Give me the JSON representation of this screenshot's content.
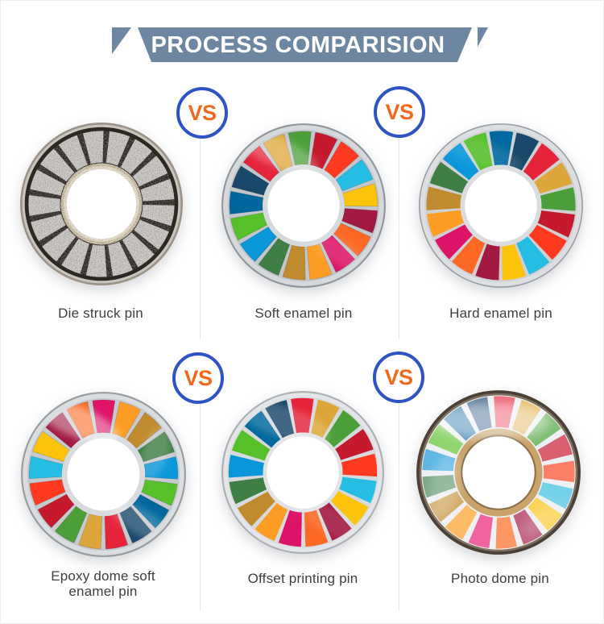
{
  "header": {
    "title": "PROCESS COMPARISION",
    "banner_color": "#6d87a2",
    "text_color": "#ffffff"
  },
  "vs_badge": {
    "label": "VS",
    "text_color": "#f2691d",
    "ring_color": "#2d53c4",
    "fill": "#ffffff"
  },
  "divider_color": "#e9eaec",
  "label_color": "#3e3e40",
  "sdg_palette": [
    "#E5243B",
    "#DDA63A",
    "#4C9F38",
    "#C5192D",
    "#FF3A21",
    "#26BDE2",
    "#FCC30B",
    "#A21942",
    "#FD6925",
    "#DD1367",
    "#FD9D24",
    "#BF8B2E",
    "#3F7E44",
    "#0A97D9",
    "#56C02B",
    "#00689D",
    "#19486A"
  ],
  "pastel_palette": [
    "#ee6876",
    "#e8c06e",
    "#7fbe72",
    "#d96070",
    "#fb7f66",
    "#74d2e8",
    "#fbd355",
    "#c06080",
    "#fd9766",
    "#ef63a0",
    "#fdbb66",
    "#d2ab67",
    "#7ba884",
    "#5fb6e3",
    "#8ed46c",
    "#518fba",
    "#5d7d9c"
  ],
  "pins": [
    {
      "id": "die-struck-pin",
      "label": "Die struck pin",
      "style": "metal",
      "rotation": 4,
      "gap_deg": 4.8,
      "r_out": 88,
      "r_in": 50,
      "hole_r": 42,
      "grain": true,
      "segment_color": "#cac7c3",
      "rings_outer": [
        {
          "r": 98,
          "c": "#9b9186"
        },
        {
          "r": 95.5,
          "c": "#c9c5bf"
        },
        {
          "r": 92.5,
          "c": "#2e2823"
        }
      ],
      "rings_inner": [
        {
          "r": 49,
          "c": "#cdbfa4"
        },
        {
          "r": 45.5,
          "c": "#e9e0cd"
        }
      ]
    },
    {
      "id": "soft-enamel-pin",
      "label": "Soft enamel pin",
      "style": "soft",
      "rotation": -56,
      "gap_deg": 3.4,
      "r_out": 88.5,
      "r_in": 49,
      "hole_r": 43,
      "colors": "sdg",
      "rings_outer": [
        {
          "r": 98,
          "c": "#8f959c"
        },
        {
          "r": 96,
          "c": "#d6d9dc"
        },
        {
          "r": 90.5,
          "c": "#c3c6ca"
        }
      ],
      "rings_inner": [
        {
          "r": 49,
          "c": "#d6d9dc"
        }
      ]
    },
    {
      "id": "hard-enamel-pin",
      "label": "Hard enamel pin",
      "style": "flat",
      "rotation": 32,
      "gap_deg": 2.8,
      "r_out": 89,
      "r_in": 48.5,
      "hole_r": 43,
      "colors": "sdg",
      "rings_outer": [
        {
          "r": 98,
          "c": "#989da3"
        },
        {
          "r": 96.5,
          "c": "#dcdee1"
        },
        {
          "r": 91,
          "c": "#cfd1d4"
        }
      ],
      "rings_inner": [
        {
          "r": 48.5,
          "c": "#dadcdf"
        }
      ]
    },
    {
      "id": "epoxy-dome-soft-enamel-pin",
      "label": "Epoxy dome soft enamel pin",
      "style": "dome",
      "rotation": 159,
      "gap_deg": 3.8,
      "r_out": 88.5,
      "r_in": 49.5,
      "hole_r": 43,
      "colors": "sdg",
      "rings_outer": [
        {
          "r": 98,
          "c": "#969ba1"
        },
        {
          "r": 96,
          "c": "#dadde0"
        },
        {
          "r": 90.5,
          "c": "#c6c9cd"
        }
      ],
      "rings_inner": [
        {
          "r": 49.5,
          "c": "#d8dbde"
        }
      ]
    },
    {
      "id": "offset-printing-pin",
      "label": "Offset printing pin",
      "style": "print",
      "rotation": -11,
      "gap_deg": 3.4,
      "r_out": 89.5,
      "r_in": 48,
      "hole_r": 43.5,
      "colors": "sdg",
      "rings_outer": [
        {
          "r": 98,
          "c": "#abafb4"
        },
        {
          "r": 96,
          "c": "#e3e5e8"
        },
        {
          "r": 91,
          "c": "#d7dadd"
        }
      ],
      "rings_inner": [
        {
          "r": 48,
          "c": "#e0e2e5"
        }
      ]
    },
    {
      "id": "photo-dome-pin",
      "label": "Photo dome pin",
      "style": "photo",
      "rotation": -6,
      "gap_deg": 5,
      "r_out": 91,
      "r_in": 54,
      "hole_r": 43,
      "colors": "pastel",
      "rings_outer": [
        {
          "r": 98,
          "c": "#4a4036"
        },
        {
          "r": 94.5,
          "c": "#7d6e5d"
        },
        {
          "r": 92,
          "c": "#eef0f3"
        }
      ],
      "rings_inner": [
        {
          "r": 54,
          "c": "#eef0f3"
        },
        {
          "r": 52.5,
          "c": "#c9a36a"
        },
        {
          "r": 45,
          "c": "#8a6d49"
        }
      ]
    }
  ]
}
